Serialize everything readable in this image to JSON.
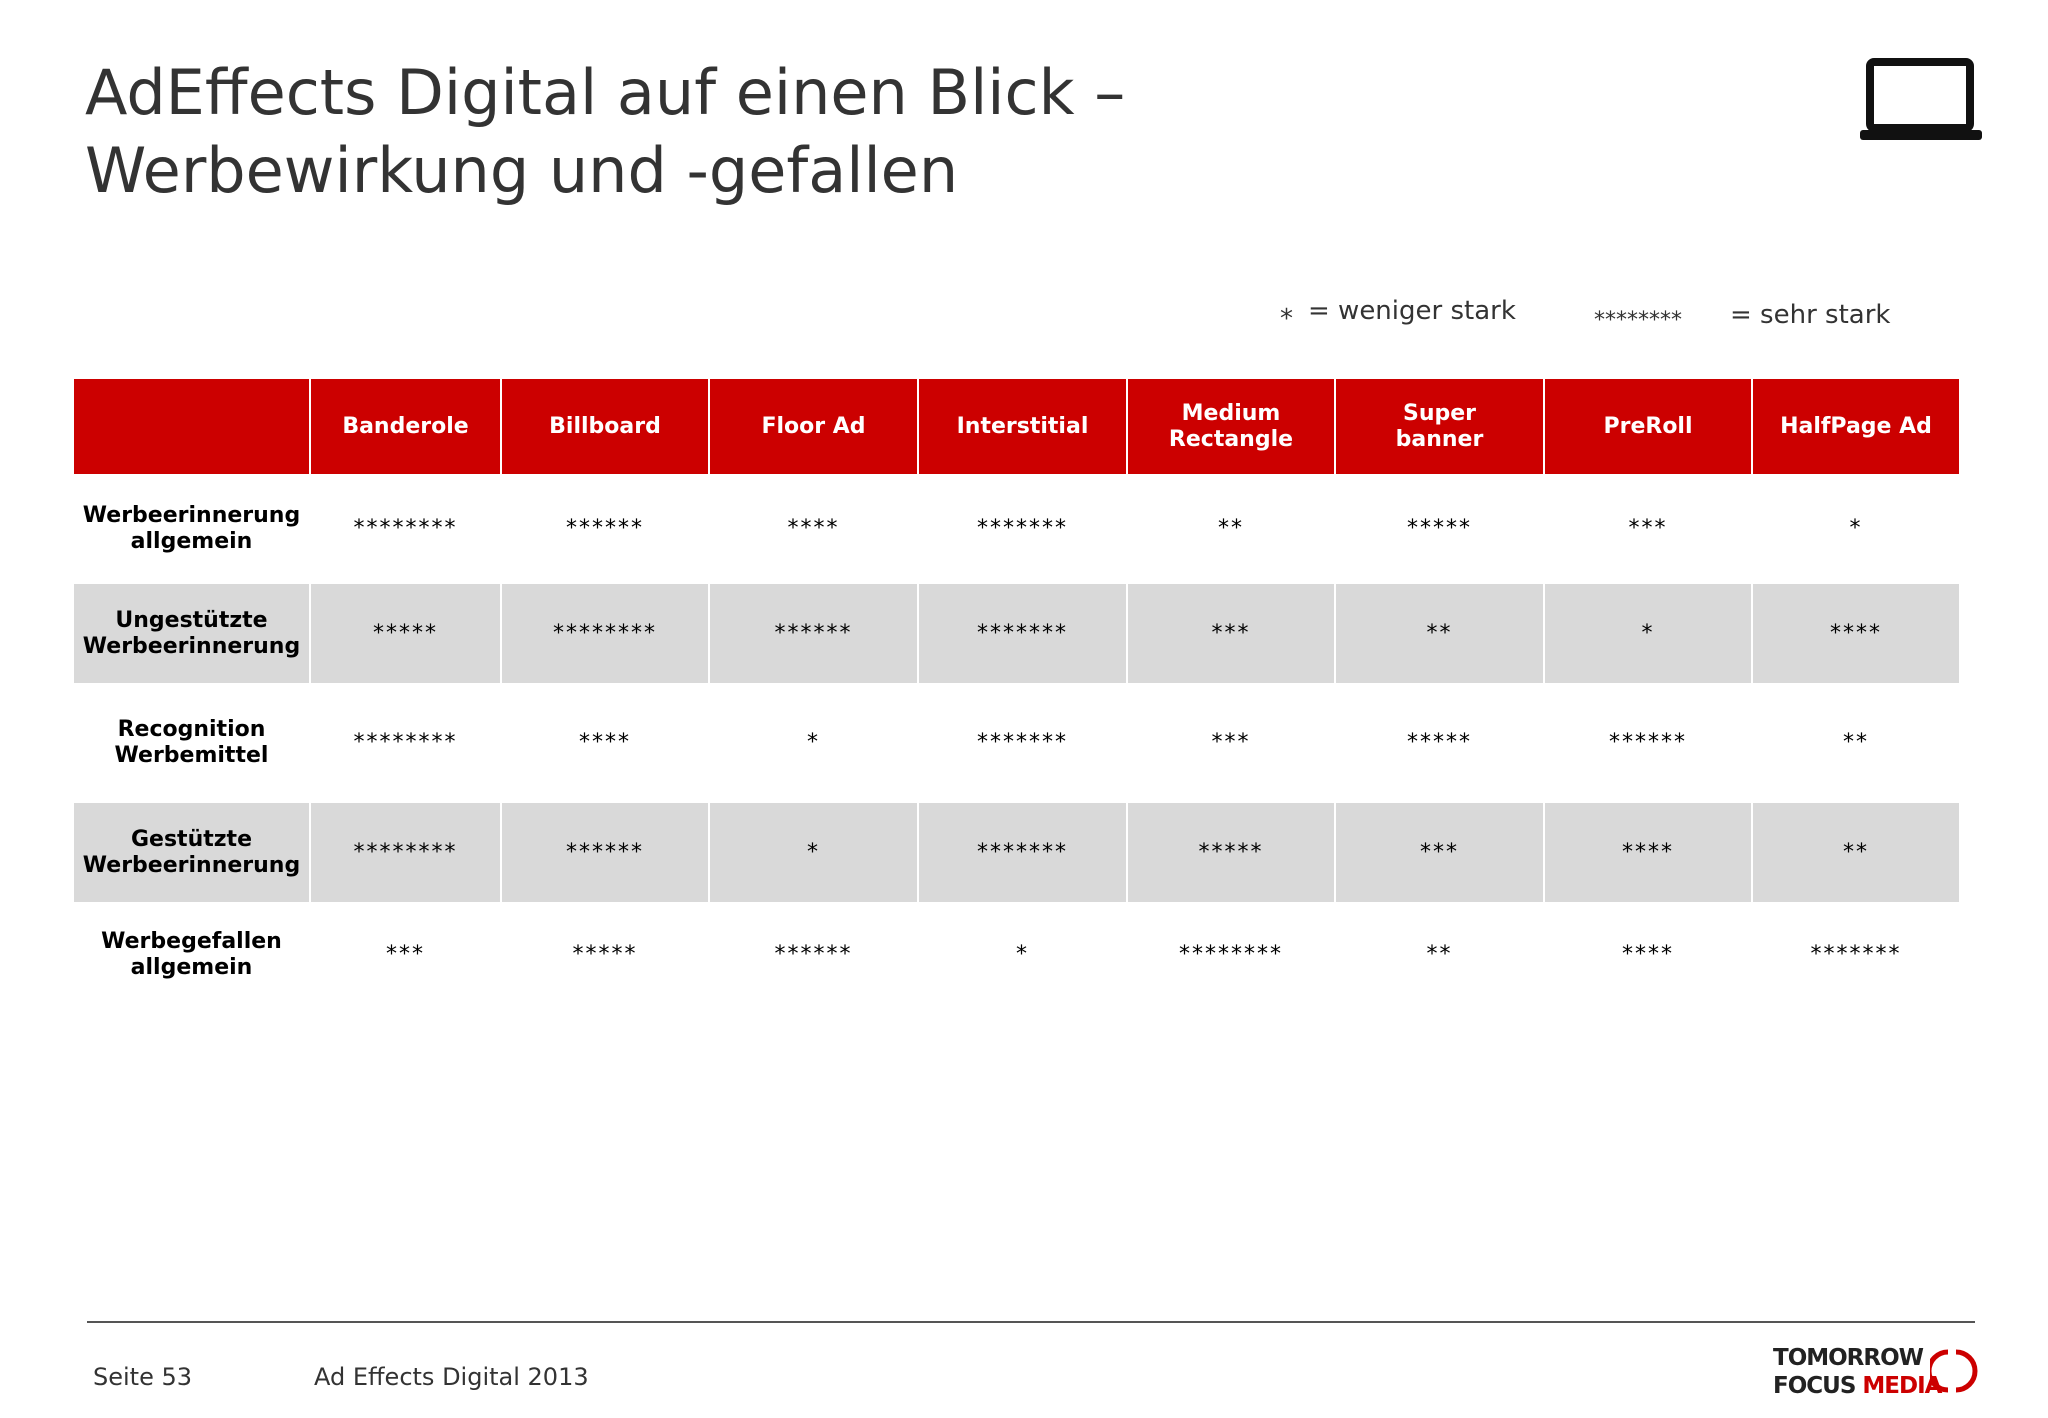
{
  "header": {
    "title": [
      "AdEffects Digital auf einen Blick –",
      "Werbewirkung und -gefallen"
    ]
  },
  "legend": {
    "low_symbol": "*",
    "low_text": "= weniger stark",
    "high_symbol": "********",
    "high_text": "= sehr stark"
  },
  "table": {
    "columns": [
      [
        "Banderole"
      ],
      [
        "Billboard"
      ],
      [
        "Floor Ad"
      ],
      [
        "Interstitial"
      ],
      [
        "Medium",
        "Rectangle"
      ],
      [
        "Super",
        "banner"
      ],
      [
        "PreRoll"
      ],
      [
        "HalfPage Ad"
      ]
    ],
    "rows": [
      {
        "label": [
          "Werbeerinnerung",
          "allgemein"
        ],
        "cells": [
          "********",
          "******",
          "****",
          "*******",
          "**",
          "*****",
          "***",
          "*"
        ]
      },
      {
        "label": [
          "Ungestützte",
          "Werbeerinnerung"
        ],
        "cells": [
          "*****",
          "********",
          "******",
          "*******",
          "***",
          "**",
          "*",
          "****"
        ]
      },
      {
        "label": [
          "Recognition",
          "Werbemittel"
        ],
        "cells": [
          "********",
          "****",
          "*",
          "*******",
          "***",
          "*****",
          "******",
          "**"
        ]
      },
      {
        "label": [
          "Gestützte",
          "Werbeerinnerung"
        ],
        "cells": [
          "********",
          "******",
          "*",
          "*******",
          "*****",
          "***",
          "****",
          "**"
        ]
      },
      {
        "label": [
          "Werbegefallen",
          "allgemein"
        ],
        "cells": [
          "***",
          "*****",
          "******",
          "*",
          "********",
          "**",
          "****",
          "*******"
        ]
      }
    ]
  },
  "footer": {
    "page": "Seite 53",
    "source": "Ad Effects Digital 2013",
    "logo": {
      "line1": "TOMORROW",
      "line2a": "FOCUS",
      "line2b": "MEDIA"
    }
  }
}
